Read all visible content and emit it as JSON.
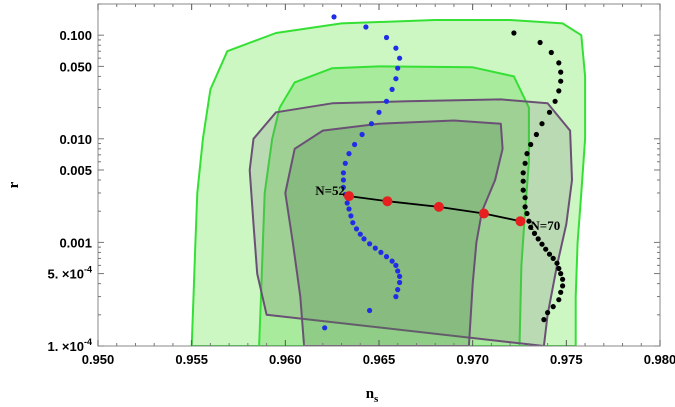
{
  "chart_data": {
    "type": "scatter",
    "title": "",
    "xlabel": "n",
    "xlabel_sub": "s",
    "ylabel": "r",
    "xlim": [
      0.95,
      0.98
    ],
    "ylim": [
      0.0001,
      0.2
    ],
    "yscale": "log",
    "grid": false,
    "legend": "none",
    "x_ticks": [
      0.95,
      0.955,
      0.96,
      0.965,
      0.97,
      0.975,
      0.98
    ],
    "x_tick_labels": [
      "0.950",
      "0.955",
      "0.960",
      "0.965",
      "0.970",
      "0.975",
      "0.980"
    ],
    "y_ticks": [
      0.0001,
      0.0005,
      0.001,
      0.005,
      0.01,
      0.05,
      0.1
    ],
    "y_tick_labels": [
      {
        "base": "1.",
        "exp": "-4"
      },
      {
        "base": "5.",
        "exp": "-4"
      },
      {
        "base": "0.001"
      },
      {
        "base": "0.005"
      },
      {
        "base": "0.010"
      },
      {
        "base": "0.050"
      },
      {
        "base": "0.100"
      }
    ],
    "y_tick_times": "×10",
    "contours": [
      {
        "color": "#7ee07e",
        "fill": "#ccf7c3",
        "stroke": "#35e035",
        "points": [
          [
            0.955,
            0.0001
          ],
          [
            0.9551,
            0.0003
          ],
          [
            0.9552,
            0.001
          ],
          [
            0.9553,
            0.003
          ],
          [
            0.9556,
            0.01
          ],
          [
            0.956,
            0.03
          ],
          [
            0.9569,
            0.07
          ],
          [
            0.9595,
            0.105
          ],
          [
            0.963,
            0.13
          ],
          [
            0.968,
            0.14
          ],
          [
            0.972,
            0.14
          ],
          [
            0.9748,
            0.13
          ],
          [
            0.9758,
            0.1
          ],
          [
            0.976,
            0.04
          ],
          [
            0.976,
            0.01
          ],
          [
            0.9758,
            0.003
          ],
          [
            0.9756,
            0.001
          ],
          [
            0.9755,
            0.0003
          ],
          [
            0.9755,
            0.0001
          ]
        ]
      },
      {
        "color": "#6fdc6f",
        "fill": "#a9eb9c",
        "stroke": "#35e035",
        "points": [
          [
            0.9586,
            0.0001
          ],
          [
            0.9587,
            0.0003
          ],
          [
            0.9588,
            0.001
          ],
          [
            0.9589,
            0.003
          ],
          [
            0.9593,
            0.01
          ],
          [
            0.9597,
            0.02
          ],
          [
            0.9605,
            0.035
          ],
          [
            0.9625,
            0.048
          ],
          [
            0.965,
            0.05
          ],
          [
            0.97,
            0.049
          ],
          [
            0.9722,
            0.04
          ],
          [
            0.973,
            0.02
          ],
          [
            0.973,
            0.006
          ],
          [
            0.9728,
            0.002
          ],
          [
            0.9726,
            0.0006
          ],
          [
            0.9725,
            0.0001
          ]
        ]
      },
      {
        "color": "#6b5b6b",
        "fill": "rgba(120,120,120,0.22)",
        "stroke": "#6b5076",
        "points": [
          [
            0.959,
            0.0002
          ],
          [
            0.9585,
            0.0005
          ],
          [
            0.9583,
            0.0015
          ],
          [
            0.9581,
            0.005
          ],
          [
            0.9583,
            0.01
          ],
          [
            0.9595,
            0.018
          ],
          [
            0.9625,
            0.022
          ],
          [
            0.9665,
            0.023
          ],
          [
            0.9715,
            0.024
          ],
          [
            0.974,
            0.022
          ],
          [
            0.9752,
            0.012
          ],
          [
            0.9753,
            0.004
          ],
          [
            0.975,
            0.0015
          ],
          [
            0.9745,
            0.0006
          ],
          [
            0.974,
            0.0002
          ],
          [
            0.9738,
            0.0001
          ]
        ]
      },
      {
        "color": "#6b5b6b",
        "fill": "rgba(80,130,80,0.28)",
        "stroke": "#6b5076",
        "points": [
          [
            0.961,
            0.0001
          ],
          [
            0.9608,
            0.0003
          ],
          [
            0.9604,
            0.001
          ],
          [
            0.96,
            0.003
          ],
          [
            0.9605,
            0.008
          ],
          [
            0.962,
            0.012
          ],
          [
            0.965,
            0.014
          ],
          [
            0.969,
            0.015
          ],
          [
            0.9715,
            0.014
          ],
          [
            0.9716,
            0.008
          ],
          [
            0.9712,
            0.004
          ],
          [
            0.9705,
            0.002
          ],
          [
            0.9702,
            0.001
          ],
          [
            0.97,
            0.0004
          ],
          [
            0.9698,
            0.0001
          ]
        ]
      }
    ],
    "series": [
      {
        "color": "#1f2ee6",
        "points": [
          [
            0.9626,
            0.15
          ],
          [
            0.9643,
            0.12
          ],
          [
            0.9654,
            0.095
          ],
          [
            0.9659,
            0.075
          ],
          [
            0.9661,
            0.06
          ],
          [
            0.966,
            0.048
          ],
          [
            0.9659,
            0.038
          ],
          [
            0.9657,
            0.03
          ],
          [
            0.9654,
            0.023
          ],
          [
            0.965,
            0.018
          ],
          [
            0.9646,
            0.014
          ],
          [
            0.9641,
            0.011
          ],
          [
            0.9637,
            0.0088
          ],
          [
            0.9634,
            0.0072
          ],
          [
            0.9632,
            0.0058
          ],
          [
            0.9631,
            0.0047
          ],
          [
            0.9631,
            0.004
          ],
          [
            0.9631,
            0.0034
          ],
          [
            0.9632,
            0.0029
          ],
          [
            0.9633,
            0.0024
          ],
          [
            0.9634,
            0.0021
          ],
          [
            0.9635,
            0.0018
          ],
          [
            0.9636,
            0.00155
          ],
          [
            0.9638,
            0.00135
          ],
          [
            0.964,
            0.0012
          ],
          [
            0.9642,
            0.00108
          ],
          [
            0.9645,
            0.00097
          ],
          [
            0.9648,
            0.00088
          ],
          [
            0.9651,
            0.0008
          ],
          [
            0.9654,
            0.00073
          ],
          [
            0.9657,
            0.00066
          ],
          [
            0.9659,
            0.0006
          ],
          [
            0.966,
            0.00053
          ],
          [
            0.9661,
            0.00047
          ],
          [
            0.9661,
            0.00041
          ],
          [
            0.966,
            0.00035
          ],
          [
            0.9659,
            0.0003
          ],
          [
            0.9645,
            0.00022
          ],
          [
            0.9621,
            0.00015
          ]
        ]
      },
      {
        "color": "#000000",
        "points": [
          [
            0.9722,
            0.105
          ],
          [
            0.9736,
            0.085
          ],
          [
            0.9742,
            0.068
          ],
          [
            0.9746,
            0.054
          ],
          [
            0.9747,
            0.044
          ],
          [
            0.9747,
            0.036
          ],
          [
            0.9746,
            0.029
          ],
          [
            0.9744,
            0.023
          ],
          [
            0.9741,
            0.018
          ],
          [
            0.9737,
            0.014
          ],
          [
            0.9734,
            0.011
          ],
          [
            0.9731,
            0.0088
          ],
          [
            0.9729,
            0.0072
          ],
          [
            0.9728,
            0.0058
          ],
          [
            0.9727,
            0.0047
          ],
          [
            0.9727,
            0.0039
          ],
          [
            0.9727,
            0.0032
          ],
          [
            0.9728,
            0.0027
          ],
          [
            0.9728,
            0.0022
          ],
          [
            0.9729,
            0.0019
          ],
          [
            0.973,
            0.0016
          ],
          [
            0.9731,
            0.0014
          ],
          [
            0.9733,
            0.00122
          ],
          [
            0.9735,
            0.00108
          ],
          [
            0.9737,
            0.00096
          ],
          [
            0.9739,
            0.00086
          ],
          [
            0.9741,
            0.00077
          ],
          [
            0.9743,
            0.0007
          ],
          [
            0.9745,
            0.00063
          ],
          [
            0.9746,
            0.00056
          ],
          [
            0.9747,
            0.0005
          ],
          [
            0.9748,
            0.00044
          ],
          [
            0.9748,
            0.00038
          ],
          [
            0.9747,
            0.00033
          ],
          [
            0.9746,
            0.00028
          ],
          [
            0.9743,
            0.00024
          ],
          [
            0.974,
            0.00021
          ],
          [
            0.9738,
            0.00018
          ]
        ]
      }
    ],
    "line_points": [
      [
        0.9634,
        0.0028
      ],
      [
        0.96545,
        0.0025
      ],
      [
        0.9682,
        0.0022
      ],
      [
        0.9706,
        0.0019
      ],
      [
        0.97255,
        0.0016
      ]
    ],
    "line_color": "#000000",
    "marker_color": "#e62020",
    "annotations": [
      {
        "text": "N=52",
        "x": 0.9634,
        "y": 0.0028,
        "anchor": "end"
      },
      {
        "text": "N=70",
        "x": 0.97255,
        "y": 0.0016,
        "anchor": "start"
      }
    ]
  }
}
